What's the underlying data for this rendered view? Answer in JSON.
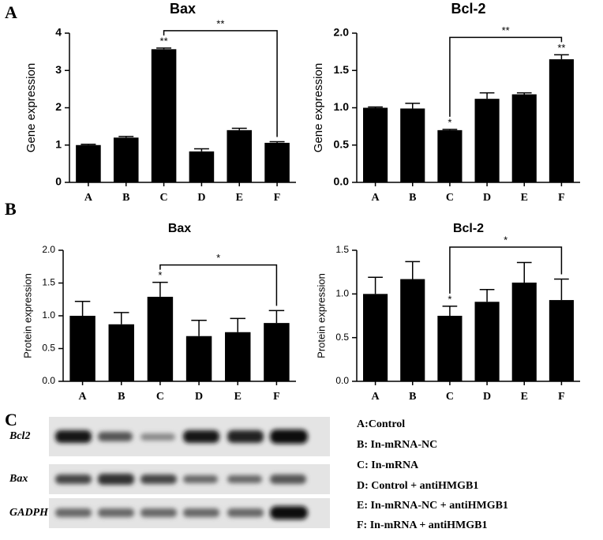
{
  "chart_data": [
    {
      "type": "bar",
      "title": "Bax",
      "ylabel": "Gene expression",
      "categories": [
        "A",
        "B",
        "C",
        "D",
        "E",
        "F"
      ],
      "values": [
        1.0,
        1.2,
        3.57,
        0.83,
        1.4,
        1.06
      ],
      "errors": [
        0.02,
        0.03,
        0.03,
        0.07,
        0.05,
        0.03
      ],
      "color": "#000000",
      "ylim": [
        0,
        4
      ],
      "yticks": [
        0,
        1,
        2,
        3,
        4
      ],
      "annotations": [
        {
          "category": 2,
          "text": "**"
        }
      ],
      "bracket": {
        "from": 2,
        "to": 5,
        "text": "**"
      }
    },
    {
      "type": "bar",
      "title": "Bcl-2",
      "ylabel": "Gene expression",
      "categories": [
        "A",
        "B",
        "C",
        "D",
        "E",
        "F"
      ],
      "values": [
        1.0,
        0.99,
        0.7,
        1.12,
        1.18,
        1.65
      ],
      "errors": [
        0.01,
        0.07,
        0.01,
        0.08,
        0.02,
        0.06
      ],
      "color": "#000000",
      "ylim": [
        0,
        2
      ],
      "yticks": [
        {
          "value": 0,
          "label": "0.0"
        },
        {
          "value": 0.5,
          "label": "0.5"
        },
        {
          "value": 1,
          "label": "1.0"
        },
        {
          "value": 1.5,
          "label": "1.5"
        },
        {
          "value": 2,
          "label": "2.0"
        }
      ],
      "annotations": [
        {
          "category": 2,
          "text": "*"
        },
        {
          "category": 5,
          "text": "**"
        }
      ],
      "bracket": {
        "from": 2,
        "to": 5,
        "text": "**"
      }
    },
    {
      "type": "bar",
      "title": "Bax",
      "ylabel": "Protein expression",
      "categories": [
        "A",
        "B",
        "C",
        "D",
        "E",
        "F"
      ],
      "values": [
        1.0,
        0.87,
        1.29,
        0.69,
        0.75,
        0.89
      ],
      "errors": [
        0.22,
        0.18,
        0.22,
        0.24,
        0.21,
        0.19
      ],
      "color": "#000000",
      "ylim": [
        0,
        2
      ],
      "yticks": [
        {
          "value": 0,
          "label": "0.0"
        },
        {
          "value": 0.5,
          "label": "0.5"
        },
        {
          "value": 1,
          "label": "1.0"
        },
        {
          "value": 1.5,
          "label": "1.5"
        },
        {
          "value": 2,
          "label": "2.0"
        }
      ],
      "annotations": [
        {
          "category": 2,
          "text": "*"
        }
      ],
      "bracket": {
        "from": 2,
        "to": 5,
        "text": "*"
      }
    },
    {
      "type": "bar",
      "title": "Bcl-2",
      "ylabel": "Protein expression",
      "categories": [
        "A",
        "B",
        "C",
        "D",
        "E",
        "F"
      ],
      "values": [
        1.0,
        1.17,
        0.75,
        0.91,
        1.13,
        0.93
      ],
      "errors": [
        0.19,
        0.2,
        0.11,
        0.14,
        0.23,
        0.24
      ],
      "color": "#000000",
      "ylim": [
        0,
        1.5
      ],
      "yticks": [
        {
          "value": 0,
          "label": "0.0"
        },
        {
          "value": 0.5,
          "label": "0.5"
        },
        {
          "value": 1,
          "label": "1.0"
        },
        {
          "value": 1.5,
          "label": "1.5"
        }
      ],
      "annotations": [
        {
          "category": 2,
          "text": "*"
        }
      ],
      "bracket": {
        "from": 2,
        "to": 5,
        "text": "*"
      }
    }
  ],
  "panel_labels": [
    "A",
    "B",
    "C"
  ],
  "blot": {
    "rows": [
      "Bcl2",
      "Bax",
      "GADPH"
    ]
  },
  "legend": [
    "A:Control",
    "B: In-mRNA-NC",
    "C: In-mRNA",
    "D: Control + antiHMGB1",
    "E: In-mRNA-NC + antiHMGB1",
    "F: In-mRNA + antiHMGB1"
  ]
}
